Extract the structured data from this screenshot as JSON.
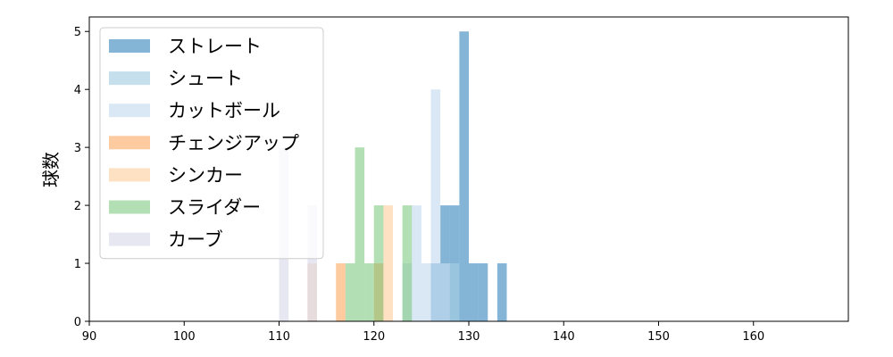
{
  "chart_data": {
    "type": "bar",
    "title": "",
    "xlabel": "",
    "ylabel": "球数",
    "xlim": [
      90,
      170
    ],
    "ylim": [
      0,
      5.25
    ],
    "x_ticks": [
      90,
      100,
      110,
      120,
      130,
      140,
      150,
      160
    ],
    "y_ticks": [
      0,
      1,
      2,
      3,
      4,
      5
    ],
    "grid": false,
    "legend_position": "top-left",
    "series": [
      {
        "name": "ストレート",
        "color": "#1f77b4",
        "alpha": 0.55,
        "bins": [
          {
            "x0": 126.0,
            "x1": 127.0,
            "count": 1
          },
          {
            "x0": 127.0,
            "x1": 128.0,
            "count": 2
          },
          {
            "x0": 128.0,
            "x1": 129.0,
            "count": 2
          },
          {
            "x0": 129.0,
            "x1": 130.0,
            "count": 5
          },
          {
            "x0": 130.0,
            "x1": 131.0,
            "count": 1
          },
          {
            "x0": 131.0,
            "x1": 132.0,
            "count": 1
          },
          {
            "x0": 133.0,
            "x1": 134.0,
            "count": 1
          }
        ]
      },
      {
        "name": "シュート",
        "color": "#a6cee3",
        "alpha": 0.65,
        "bins": [
          {
            "x0": 128.0,
            "x1": 129.0,
            "count": 1
          }
        ]
      },
      {
        "name": "カットボール",
        "color": "#c6dbef",
        "alpha": 0.65,
        "bins": [
          {
            "x0": 123.0,
            "x1": 124.0,
            "count": 1
          },
          {
            "x0": 124.0,
            "x1": 125.0,
            "count": 2
          },
          {
            "x0": 125.0,
            "x1": 126.0,
            "count": 1
          },
          {
            "x0": 126.0,
            "x1": 127.0,
            "count": 4
          },
          {
            "x0": 127.0,
            "x1": 128.0,
            "count": 1
          }
        ]
      },
      {
        "name": "チェンジアップ",
        "color": "#fdae6b",
        "alpha": 0.65,
        "bins": [
          {
            "x0": 116.0,
            "x1": 117.0,
            "count": 1
          },
          {
            "x0": 120.0,
            "x1": 121.0,
            "count": 1
          }
        ]
      },
      {
        "name": "シンカー",
        "color": "#fdd0a2",
        "alpha": 0.65,
        "bins": [
          {
            "x0": 113.0,
            "x1": 114.0,
            "count": 1
          },
          {
            "x0": 121.0,
            "x1": 122.0,
            "count": 2
          }
        ]
      },
      {
        "name": "スライダー",
        "color": "#74c476",
        "alpha": 0.55,
        "bins": [
          {
            "x0": 117.0,
            "x1": 118.0,
            "count": 1
          },
          {
            "x0": 118.0,
            "x1": 119.0,
            "count": 3
          },
          {
            "x0": 119.0,
            "x1": 120.0,
            "count": 1
          },
          {
            "x0": 120.0,
            "x1": 121.0,
            "count": 2
          },
          {
            "x0": 123.0,
            "x1": 124.0,
            "count": 2
          }
        ]
      },
      {
        "name": "カーブ",
        "color": "#dadaeb",
        "alpha": 0.65,
        "bins": [
          {
            "x0": 110.0,
            "x1": 111.0,
            "count": 3
          },
          {
            "x0": 113.0,
            "x1": 114.0,
            "count": 2
          }
        ]
      }
    ]
  }
}
